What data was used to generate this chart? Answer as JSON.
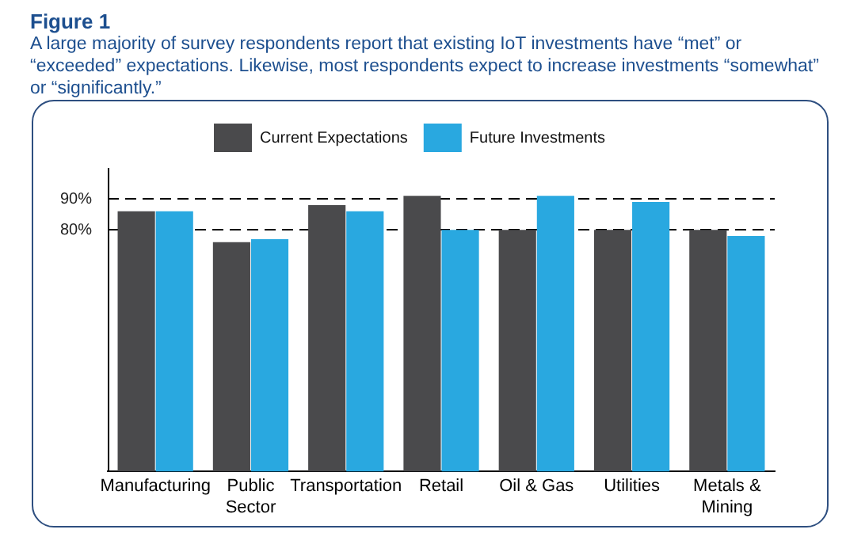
{
  "chart_data": {
    "type": "bar",
    "title": "Figure 1",
    "subtitle": "A large majority of survey respondents report that existing IoT investments have “met” or “exceeded” expectations. Likewise, most respondents expect to increase investments “somewhat” or “significantly.”",
    "categories": [
      "Manufacturing",
      "Public Sector",
      "Transportation",
      "Retail",
      "Oil & Gas",
      "Utilities",
      "Metals & Mining"
    ],
    "series": [
      {
        "name": "Current Expectations",
        "color": "#4a4a4c",
        "values": [
          86,
          76,
          88,
          91,
          80,
          80,
          80
        ]
      },
      {
        "name": "Future Investments",
        "color": "#29a8e0",
        "values": [
          86,
          77,
          86,
          80,
          91,
          89,
          78
        ]
      }
    ],
    "ylim": [
      2,
      100
    ],
    "yticks": [
      {
        "value": 80,
        "label": "80%"
      },
      {
        "value": 90,
        "label": "90%"
      }
    ],
    "grid": "y",
    "line_style": "dashed",
    "legend": "top"
  }
}
